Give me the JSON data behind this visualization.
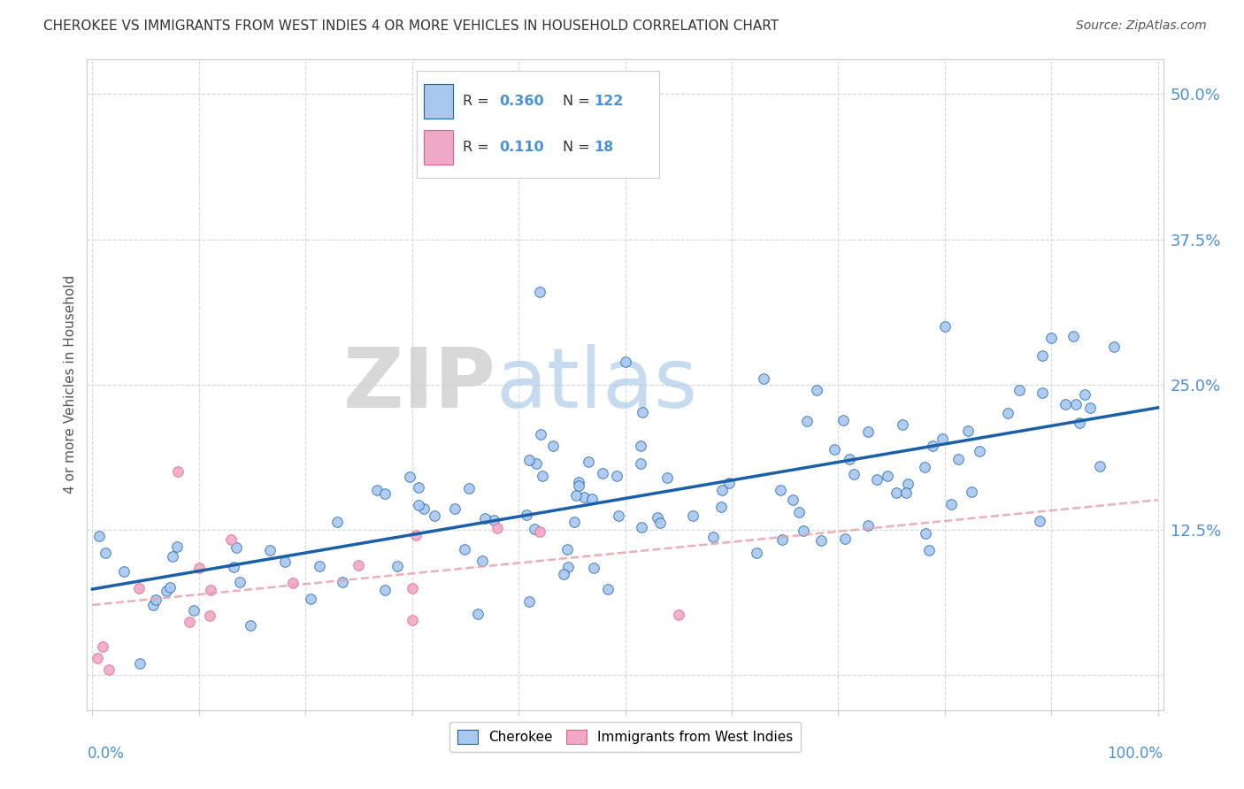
{
  "title": "CHEROKEE VS IMMIGRANTS FROM WEST INDIES 4 OR MORE VEHICLES IN HOUSEHOLD CORRELATION CHART",
  "source": "Source: ZipAtlas.com",
  "ylabel": "4 or more Vehicles in Household",
  "r_cherokee": 0.36,
  "n_cherokee": 122,
  "r_westindies": 0.11,
  "n_westindies": 18,
  "cherokee_color": "#a8c8f0",
  "westindies_color": "#f0a8c8",
  "cherokee_line_color": "#1a5fa8",
  "westindies_line_color": "#e06080",
  "cherokee_trendline_color": "#1a5fa8",
  "westindies_trendline_color": "#e8a0b0",
  "background_color": "#ffffff",
  "grid_color": "#d0d8e0",
  "tick_color": "#4a90d9",
  "ytick_labels": [
    "",
    "12.5%",
    "25.0%",
    "37.5%",
    "50.0%"
  ],
  "ytick_vals": [
    0.0,
    0.125,
    0.25,
    0.375,
    0.5
  ],
  "xlim": [
    -0.005,
    1.005
  ],
  "ylim": [
    -0.03,
    0.53
  ]
}
